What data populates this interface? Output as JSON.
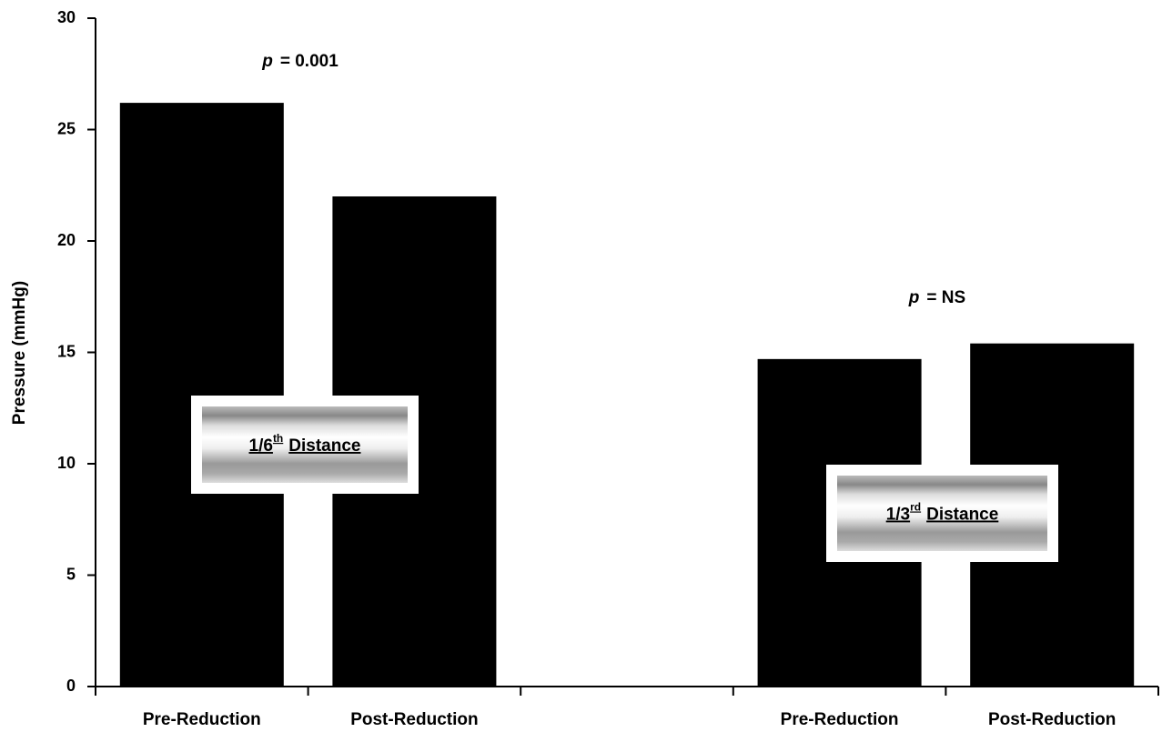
{
  "chart_data": {
    "type": "bar",
    "y_label": "Pressure (mmHg)",
    "categories": [
      "Pre-Reduction",
      "Post-Reduction",
      null,
      "Pre-Reduction",
      "Post-Reduction"
    ],
    "values": [
      26.2,
      22.0,
      null,
      14.7,
      15.4
    ],
    "color": "#000000",
    "ylim": [
      0,
      30
    ],
    "yticks": [
      0,
      5,
      10,
      15,
      20,
      25,
      30
    ],
    "grid": false,
    "annotations": [
      {
        "prefix": "p",
        "text": "= 0.001"
      },
      {
        "prefix": "p",
        "text": "= NS"
      }
    ],
    "insets": [
      {
        "text": "1/6",
        "sup": "th",
        "suffix": "Distance"
      },
      {
        "text": "1/3",
        "sup": "rd",
        "suffix": "Distance"
      }
    ]
  }
}
